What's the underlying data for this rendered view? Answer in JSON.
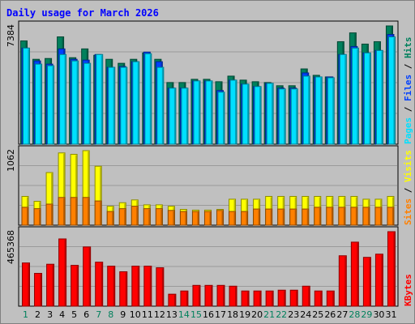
{
  "title": "Daily usage for March 2026",
  "colors": {
    "background": "#c0c0c0",
    "frame_dark": "#808080",
    "frame_light": "#ffffff",
    "grid": "#9a9a9a",
    "title": "#0000ff",
    "hits": "#00805c",
    "files": "#0040ff",
    "pages": "#00e0ff",
    "visits": "#ffff00",
    "sites": "#ff8000",
    "kbytes": "#ff0000",
    "weekday_label": "#000000",
    "weekend_label": "#00805c",
    "axis_text": "#000000"
  },
  "legend": {
    "top": [
      {
        "text": "Hits",
        "color_key": "hits"
      },
      {
        "text": " / ",
        "color_key": "axis_text"
      },
      {
        "text": "Files",
        "color_key": "files"
      },
      {
        "text": " / ",
        "color_key": "axis_text"
      },
      {
        "text": "Pages",
        "color_key": "pages"
      }
    ],
    "middle": [
      {
        "text": "Visits",
        "color_key": "visits"
      },
      {
        "text": " / ",
        "color_key": "axis_text"
      },
      {
        "text": "Sites",
        "color_key": "sites"
      }
    ],
    "bottom": [
      {
        "text": "KBytes",
        "color_key": "kbytes"
      }
    ]
  },
  "chart_data": [
    {
      "type": "bar",
      "panel": "hits-files-pages",
      "categories": [
        "1",
        "2",
        "3",
        "4",
        "5",
        "6",
        "7",
        "8",
        "9",
        "10",
        "11",
        "12",
        "13",
        "14",
        "15",
        "16",
        "17",
        "18",
        "19",
        "20",
        "21",
        "22",
        "23",
        "24",
        "25",
        "26",
        "27",
        "28",
        "29",
        "30",
        "31"
      ],
      "weekend_days": [
        "1",
        "7",
        "8",
        "14",
        "15",
        "21",
        "22",
        "28",
        "29"
      ],
      "ymax_label": "7384",
      "ylim": [
        0,
        7384
      ],
      "series": [
        {
          "name": "Hits",
          "values": [
            6450,
            5300,
            5350,
            6700,
            5400,
            5950,
            5550,
            5300,
            5050,
            5300,
            5700,
            5300,
            3850,
            3850,
            4050,
            4050,
            3900,
            4250,
            4000,
            3900,
            3850,
            3650,
            3650,
            4700,
            4300,
            4200,
            6400,
            6950,
            6250,
            6400,
            7384
          ]
        },
        {
          "name": "Files",
          "values": [
            6000,
            5200,
            5000,
            5950,
            5300,
            5250,
            5600,
            4800,
            4850,
            5150,
            5750,
            5150,
            3500,
            3500,
            3950,
            3950,
            3350,
            4000,
            3750,
            3600,
            3800,
            3500,
            3500,
            4450,
            4200,
            4200,
            5600,
            6100,
            5700,
            5850,
            6850
          ]
        },
        {
          "name": "Pages",
          "values": [
            6000,
            5000,
            4900,
            5600,
            5200,
            5050,
            5600,
            4800,
            4800,
            5150,
            5650,
            4800,
            3500,
            3500,
            3950,
            3950,
            3250,
            4000,
            3750,
            3600,
            3800,
            3450,
            3450,
            4250,
            4200,
            4150,
            5600,
            6000,
            5700,
            5850,
            6700
          ]
        }
      ]
    },
    {
      "type": "bar",
      "panel": "visits-sites",
      "categories": [
        "1",
        "2",
        "3",
        "4",
        "5",
        "6",
        "7",
        "8",
        "9",
        "10",
        "11",
        "12",
        "13",
        "14",
        "15",
        "16",
        "17",
        "18",
        "19",
        "20",
        "21",
        "22",
        "23",
        "24",
        "25",
        "26",
        "27",
        "28",
        "29",
        "30",
        "31"
      ],
      "ymax_label": "1062",
      "ylim": [
        0,
        1062
      ],
      "series": [
        {
          "name": "Visits",
          "values": [
            410,
            340,
            750,
            1030,
            1010,
            1062,
            840,
            270,
            320,
            360,
            290,
            290,
            270,
            225,
            215,
            215,
            225,
            370,
            370,
            370,
            410,
            410,
            410,
            410,
            410,
            410,
            410,
            410,
            370,
            370,
            410
          ]
        },
        {
          "name": "Sites",
          "values": [
            255,
            235,
            300,
            395,
            395,
            395,
            345,
            195,
            235,
            270,
            235,
            235,
            210,
            195,
            195,
            195,
            210,
            195,
            195,
            230,
            230,
            230,
            230,
            230,
            255,
            255,
            255,
            255,
            255,
            255,
            255
          ]
        }
      ]
    },
    {
      "type": "bar",
      "panel": "kbytes",
      "categories": [
        "1",
        "2",
        "3",
        "4",
        "5",
        "6",
        "7",
        "8",
        "9",
        "10",
        "11",
        "12",
        "13",
        "14",
        "15",
        "16",
        "17",
        "18",
        "19",
        "20",
        "21",
        "22",
        "23",
        "24",
        "25",
        "26",
        "27",
        "28",
        "29",
        "30",
        "31"
      ],
      "ymax_label": "465368",
      "ylim": [
        0,
        465368
      ],
      "series": [
        {
          "name": "KBytes",
          "values": [
            270000,
            205000,
            262000,
            420000,
            255000,
            370000,
            275000,
            250000,
            215000,
            250000,
            250000,
            240000,
            75000,
            95000,
            130000,
            130000,
            130000,
            125000,
            95000,
            95000,
            95000,
            100000,
            100000,
            125000,
            95000,
            95000,
            315000,
            400000,
            305000,
            325000,
            465368
          ]
        }
      ]
    }
  ]
}
